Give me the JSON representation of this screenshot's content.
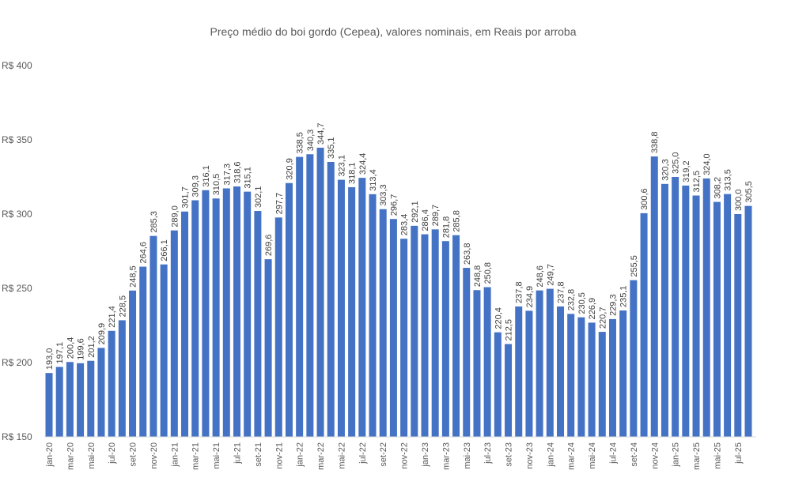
{
  "chart_data": {
    "type": "bar",
    "title": "Preço médio do boi gordo (Cepea), valores nominais, em Reais por arroba",
    "xlabel": "",
    "ylabel": "",
    "ylim": [
      150,
      400
    ],
    "y_ticks": [
      150,
      200,
      250,
      300,
      350,
      400
    ],
    "y_tick_labels": [
      "R$ 150",
      "R$ 200",
      "R$ 250",
      "R$ 300",
      "R$ 350",
      "R$ 400"
    ],
    "grid": false,
    "legend": "none",
    "bar_color": "#4472C4",
    "x_tick_every": 2,
    "x_tick_labels": [
      "jan-20",
      "mar-20",
      "mai-20",
      "jul-20",
      "set-20",
      "nov-20",
      "jan-21",
      "mar-21",
      "mai-21",
      "jul-21",
      "set-21",
      "nov-21",
      "jan-22",
      "mar-22",
      "mai-22",
      "jul-22",
      "set-22",
      "nov-22",
      "jan-23",
      "mar-23",
      "mai-23",
      "jul-23",
      "set-23",
      "nov-23",
      "jan-24",
      "mar-24",
      "mai-24",
      "jul-24",
      "set-24",
      "nov-24",
      "jan-25",
      "mar-25",
      "mai-25",
      "jul-25"
    ],
    "values": [
      193.0,
      197.1,
      200.4,
      199.6,
      201.2,
      209.9,
      221.4,
      228.5,
      248.5,
      264.6,
      285.3,
      266.1,
      289.0,
      301.7,
      309.3,
      316.1,
      310.5,
      317.3,
      318.6,
      315.1,
      302.1,
      269.6,
      297.7,
      320.9,
      338.5,
      340.3,
      344.7,
      335.1,
      323.1,
      318.1,
      324.4,
      313.4,
      303.3,
      296.7,
      283.4,
      292.1,
      286.4,
      289.7,
      281.8,
      285.8,
      263.8,
      248.8,
      250.8,
      220.4,
      212.5,
      237.8,
      234.9,
      248.6,
      249.7,
      237.8,
      232.8,
      230.5,
      226.9,
      220.7,
      229.3,
      235.1,
      255.5,
      300.6,
      338.8,
      320.3,
      325.0,
      319.2,
      312.5,
      324.0,
      308.2,
      313.5,
      300.0,
      305.5
    ],
    "data_labels": [
      "193,0",
      "197,1",
      "200,4",
      "199,6",
      "201,2",
      "209,9",
      "221,4",
      "228,5",
      "248,5",
      "264,6",
      "285,3",
      "266,1",
      "289,0",
      "301,7",
      "309,3",
      "316,1",
      "310,5",
      "317,3",
      "318,6",
      "315,1",
      "302,1",
      "269,6",
      "297,7",
      "320,9",
      "338,5",
      "340,3",
      "344,7",
      "335,1",
      "323,1",
      "318,1",
      "324,4",
      "313,4",
      "303,3",
      "296,7",
      "283,4",
      "292,1",
      "286,4",
      "289,7",
      "281,8",
      "285,8",
      "263,8",
      "248,8",
      "250,8",
      "220,4",
      "212,5",
      "237,8",
      "234,9",
      "248,6",
      "249,7",
      "237,8",
      "232,8",
      "230,5",
      "226,9",
      "220,7",
      "229,3",
      "235,1",
      "255,5",
      "300,6",
      "338,8",
      "320,3",
      "325,0",
      "319,2",
      "312,5",
      "324,0",
      "308,2",
      "313,5",
      "300,0",
      "305,5"
    ]
  }
}
